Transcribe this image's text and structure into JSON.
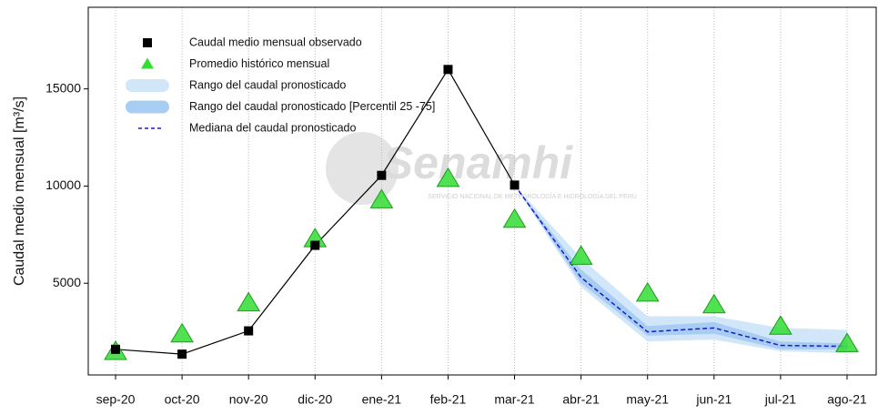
{
  "chart_data": {
    "type": "line",
    "y_label": "Caudal medio mensual  [m³/s]",
    "watermark": "Senamhi",
    "watermark_subtitle": "SERVICIO NACIONAL DE METEOROLOGÍA E HIDROLOGÍA DEL PERÚ",
    "categories": [
      "sep-20",
      "oct-20",
      "nov-20",
      "dic-20",
      "ene-21",
      "feb-21",
      "mar-21",
      "abr-21",
      "may-21",
      "jun-21",
      "jul-21",
      "ago-21"
    ],
    "ylim": [
      280,
      19200
    ],
    "yticks": [
      5000,
      10000,
      15000
    ],
    "grid": true,
    "series": [
      {
        "name": "Caudal medio mensual observado",
        "style": "square",
        "color": "#000000",
        "values": [
          1600,
          1350,
          2550,
          6950,
          10550,
          16000,
          10050,
          null,
          null,
          null,
          null,
          null
        ]
      },
      {
        "name": "Promedio histórico mensual",
        "style": "triangle",
        "color": "#33dd33",
        "values": [
          1500,
          2400,
          4000,
          7300,
          9300,
          10400,
          8300,
          6400,
          4500,
          3900,
          2800,
          1900
        ]
      },
      {
        "name": "Rango del caudal pronosticado",
        "style": "band",
        "color": "#d2e6fa",
        "low": [
          null,
          null,
          null,
          null,
          null,
          null,
          10050,
          4800,
          2000,
          2100,
          1500,
          1400
        ],
        "high": [
          null,
          null,
          null,
          null,
          null,
          null,
          10050,
          6300,
          3300,
          3300,
          2700,
          2600
        ]
      },
      {
        "name": "Rango del caudal pronosticado [Percentil 25 -75]",
        "style": "band",
        "color": "#a8cdf2",
        "low": [
          null,
          null,
          null,
          null,
          null,
          null,
          10050,
          5000,
          2300,
          2400,
          1600,
          1600
        ],
        "high": [
          null,
          null,
          null,
          null,
          null,
          null,
          10050,
          5700,
          2800,
          3000,
          2000,
          1900
        ]
      },
      {
        "name": "Mediana del caudal pronosticado",
        "style": "dashed",
        "color": "#1a1acc",
        "values": [
          null,
          null,
          null,
          null,
          null,
          null,
          10050,
          5300,
          2500,
          2700,
          1800,
          1750
        ]
      }
    ]
  }
}
